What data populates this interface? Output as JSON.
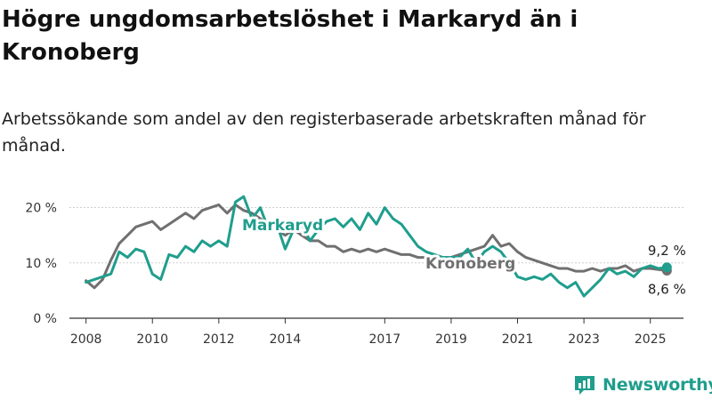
{
  "header": {
    "title": "Högre ungdomsarbetslöshet i Markaryd än i Kronoberg",
    "subtitle": "Arbetssökande som andel av den registerbaserade arbetskraften månad för månad."
  },
  "brand": {
    "name": "Newsworthy",
    "icon": "newsworthy-chart-icon",
    "color": "#1f9e8d"
  },
  "chart_data": {
    "type": "line",
    "xlim": [
      2007.5,
      2026.0
    ],
    "ylim": [
      0,
      22.5
    ],
    "x_ticks": [
      2008,
      2010,
      2012,
      2014,
      2017,
      2019,
      2021,
      2023,
      2025
    ],
    "x_tick_labels": [
      "2008",
      "2010",
      "2012",
      "2014",
      "2017",
      "2019",
      "2021",
      "2023",
      "2025"
    ],
    "y_ticks": [
      0,
      10,
      20
    ],
    "y_tick_labels": [
      "0 %",
      "10 %",
      "20 %"
    ],
    "grid": true,
    "series": [
      {
        "name": "Kronoberg",
        "color": "#707070",
        "end_label": "8,6 %",
        "x": [
          2008.0,
          2008.25,
          2008.5,
          2008.75,
          2009.0,
          2009.25,
          2009.5,
          2009.75,
          2010.0,
          2010.25,
          2010.5,
          2010.75,
          2011.0,
          2011.25,
          2011.5,
          2011.75,
          2012.0,
          2012.25,
          2012.5,
          2012.75,
          2013.0,
          2013.25,
          2013.5,
          2013.75,
          2014.0,
          2014.25,
          2014.5,
          2014.75,
          2015.0,
          2015.25,
          2015.5,
          2015.75,
          2016.0,
          2016.25,
          2016.5,
          2016.75,
          2017.0,
          2017.25,
          2017.5,
          2017.75,
          2018.0,
          2018.25,
          2018.5,
          2018.75,
          2019.0,
          2019.25,
          2019.5,
          2019.75,
          2020.0,
          2020.25,
          2020.5,
          2020.75,
          2021.0,
          2021.25,
          2021.5,
          2021.75,
          2022.0,
          2022.25,
          2022.5,
          2022.75,
          2023.0,
          2023.25,
          2023.5,
          2023.75,
          2024.0,
          2024.25,
          2024.5,
          2024.75,
          2025.0,
          2025.25,
          2025.5
        ],
        "y": [
          6.8,
          5.5,
          7.0,
          10.5,
          13.5,
          15.0,
          16.5,
          17.0,
          17.5,
          16.0,
          17.0,
          18.0,
          19.0,
          18.0,
          19.5,
          20.0,
          20.5,
          19.0,
          20.5,
          19.5,
          19.0,
          18.0,
          17.0,
          16.0,
          15.0,
          16.0,
          15.0,
          14.0,
          14.0,
          13.0,
          13.0,
          12.0,
          12.5,
          12.0,
          12.5,
          12.0,
          12.5,
          12.0,
          11.5,
          11.5,
          11.0,
          11.0,
          11.0,
          11.0,
          11.0,
          11.5,
          12.0,
          12.5,
          13.0,
          15.0,
          13.0,
          13.5,
          12.0,
          11.0,
          10.5,
          10.0,
          9.5,
          9.0,
          9.0,
          8.5,
          8.5,
          9.0,
          8.5,
          9.0,
          9.0,
          9.5,
          8.5,
          9.0,
          9.0,
          8.8,
          8.6
        ]
      },
      {
        "name": "Markaryd",
        "color": "#1f9e8d",
        "end_label": "9,2 %",
        "x": [
          2008.0,
          2008.25,
          2008.5,
          2008.75,
          2009.0,
          2009.25,
          2009.5,
          2009.75,
          2010.0,
          2010.25,
          2010.5,
          2010.75,
          2011.0,
          2011.25,
          2011.5,
          2011.75,
          2012.0,
          2012.25,
          2012.5,
          2012.75,
          2013.0,
          2013.25,
          2013.5,
          2013.75,
          2014.0,
          2014.25,
          2014.5,
          2014.75,
          2015.0,
          2015.25,
          2015.5,
          2015.75,
          2016.0,
          2016.25,
          2016.5,
          2016.75,
          2017.0,
          2017.25,
          2017.5,
          2017.75,
          2018.0,
          2018.25,
          2018.5,
          2018.75,
          2019.0,
          2019.25,
          2019.5,
          2019.75,
          2020.0,
          2020.25,
          2020.5,
          2020.75,
          2021.0,
          2021.25,
          2021.5,
          2021.75,
          2022.0,
          2022.25,
          2022.5,
          2022.75,
          2023.0,
          2023.25,
          2023.5,
          2023.75,
          2024.0,
          2024.25,
          2024.5,
          2024.75,
          2025.0,
          2025.25,
          2025.5
        ],
        "y": [
          6.5,
          7.0,
          7.5,
          8.0,
          12.0,
          11.0,
          12.5,
          12.0,
          8.0,
          7.0,
          11.5,
          11.0,
          13.0,
          12.0,
          14.0,
          13.0,
          14.0,
          13.0,
          21.0,
          22.0,
          18.0,
          20.0,
          16.0,
          17.0,
          12.5,
          16.0,
          17.0,
          14.0,
          16.0,
          17.5,
          18.0,
          16.5,
          18.0,
          16.0,
          19.0,
          17.0,
          20.0,
          18.0,
          17.0,
          15.0,
          13.0,
          12.0,
          11.5,
          11.0,
          11.0,
          11.0,
          12.5,
          10.0,
          12.0,
          13.0,
          12.0,
          10.0,
          7.5,
          7.0,
          7.5,
          7.0,
          8.0,
          6.5,
          5.5,
          6.5,
          4.0,
          5.5,
          7.0,
          9.0,
          8.0,
          8.5,
          7.5,
          9.0,
          9.5,
          9.0,
          9.2
        ]
      }
    ],
    "annotations": [
      {
        "text": "Markaryd",
        "series": "Markaryd"
      },
      {
        "text": "Kronoberg",
        "series": "Kronoberg"
      }
    ]
  }
}
